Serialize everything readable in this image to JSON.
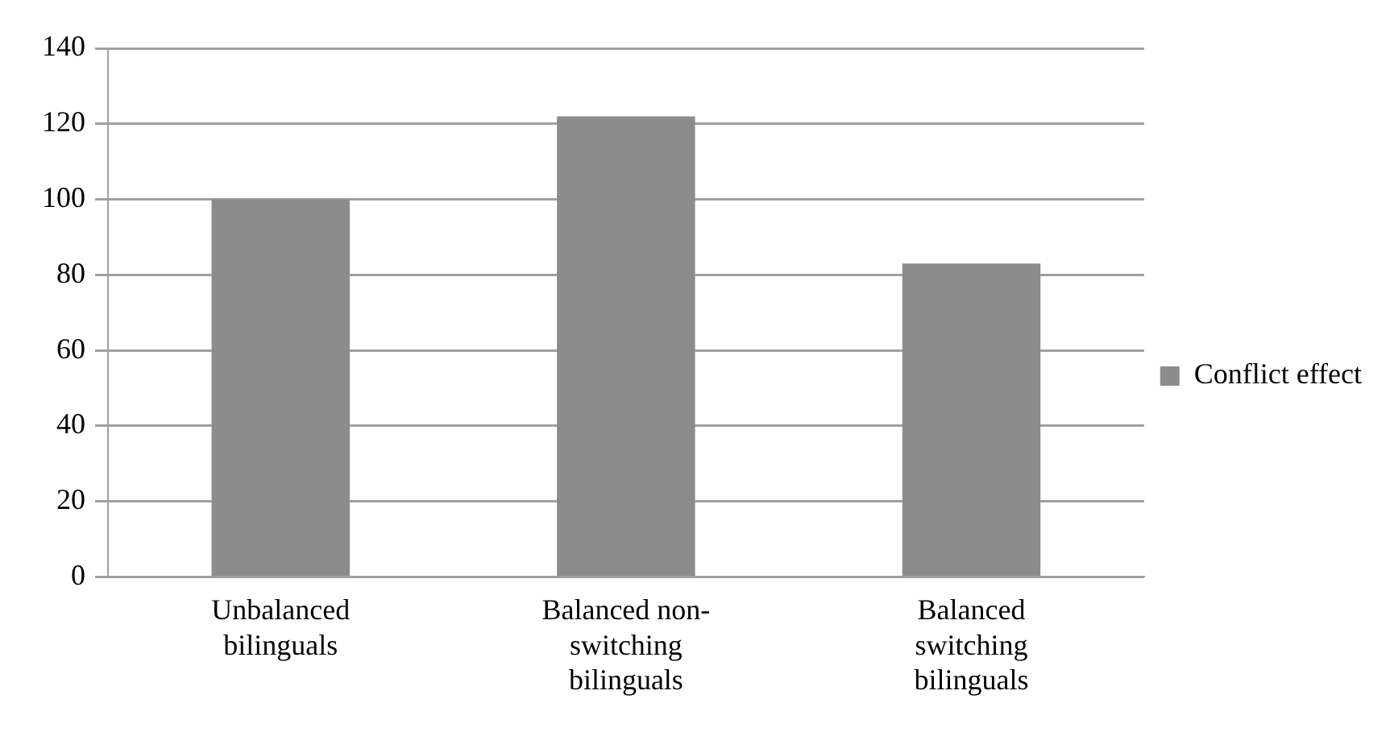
{
  "chart_data": {
    "type": "bar",
    "categories": [
      "Unbalanced bilinguals",
      "Balanced non-switching bilinguals",
      "Balanced switching bilinguals"
    ],
    "series": [
      {
        "name": "Conflict effect",
        "color": "#8c8c8c",
        "values": [
          100,
          122,
          83
        ]
      }
    ],
    "ylim": [
      0,
      140
    ],
    "yticks": [
      0,
      20,
      40,
      60,
      80,
      100,
      120,
      140
    ],
    "grid": "y",
    "legend": "right"
  }
}
